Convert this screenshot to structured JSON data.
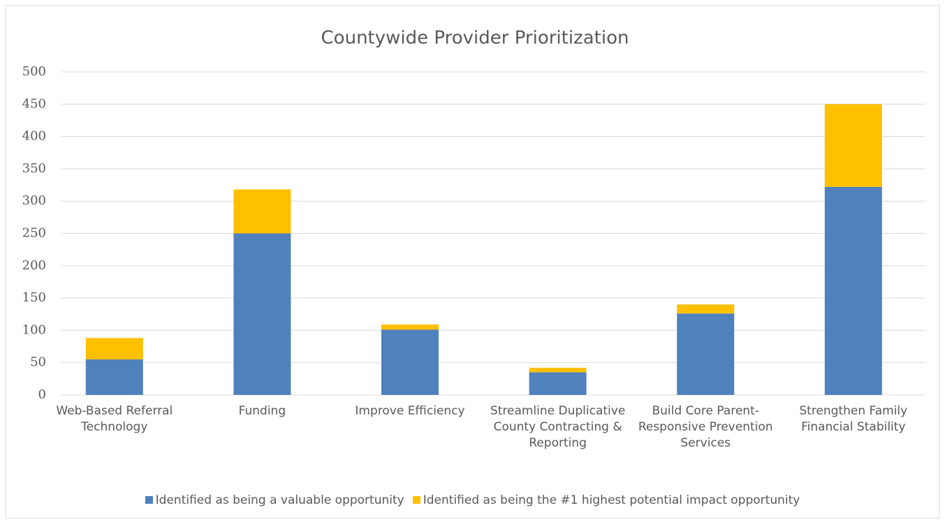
{
  "chart_data": {
    "type": "stacked_bar",
    "title": "Countywide Provider Prioritization",
    "categories": [
      "Web-Based Referral Technology",
      "Funding",
      "Improve Efficiency",
      "Streamline Duplicative County Contracting & Reporting",
      "Build Core Parent-Responsive Prevention Services",
      "Strengthen Family Financial Stability"
    ],
    "series": [
      {
        "name": "Identified as being a valuable opportunity",
        "color": "#4f81bd",
        "values": [
          55,
          250,
          101,
          35,
          126,
          322
        ]
      },
      {
        "name": "Identified as being the #1 highest potential impact opportunity",
        "color": "#ffc000",
        "values": [
          33,
          68,
          8,
          7,
          14,
          128
        ]
      }
    ],
    "ylim": [
      0,
      500
    ],
    "yticks": [
      0,
      50,
      100,
      150,
      200,
      250,
      300,
      350,
      400,
      450,
      500
    ],
    "grid": true,
    "legend": "bottom"
  }
}
